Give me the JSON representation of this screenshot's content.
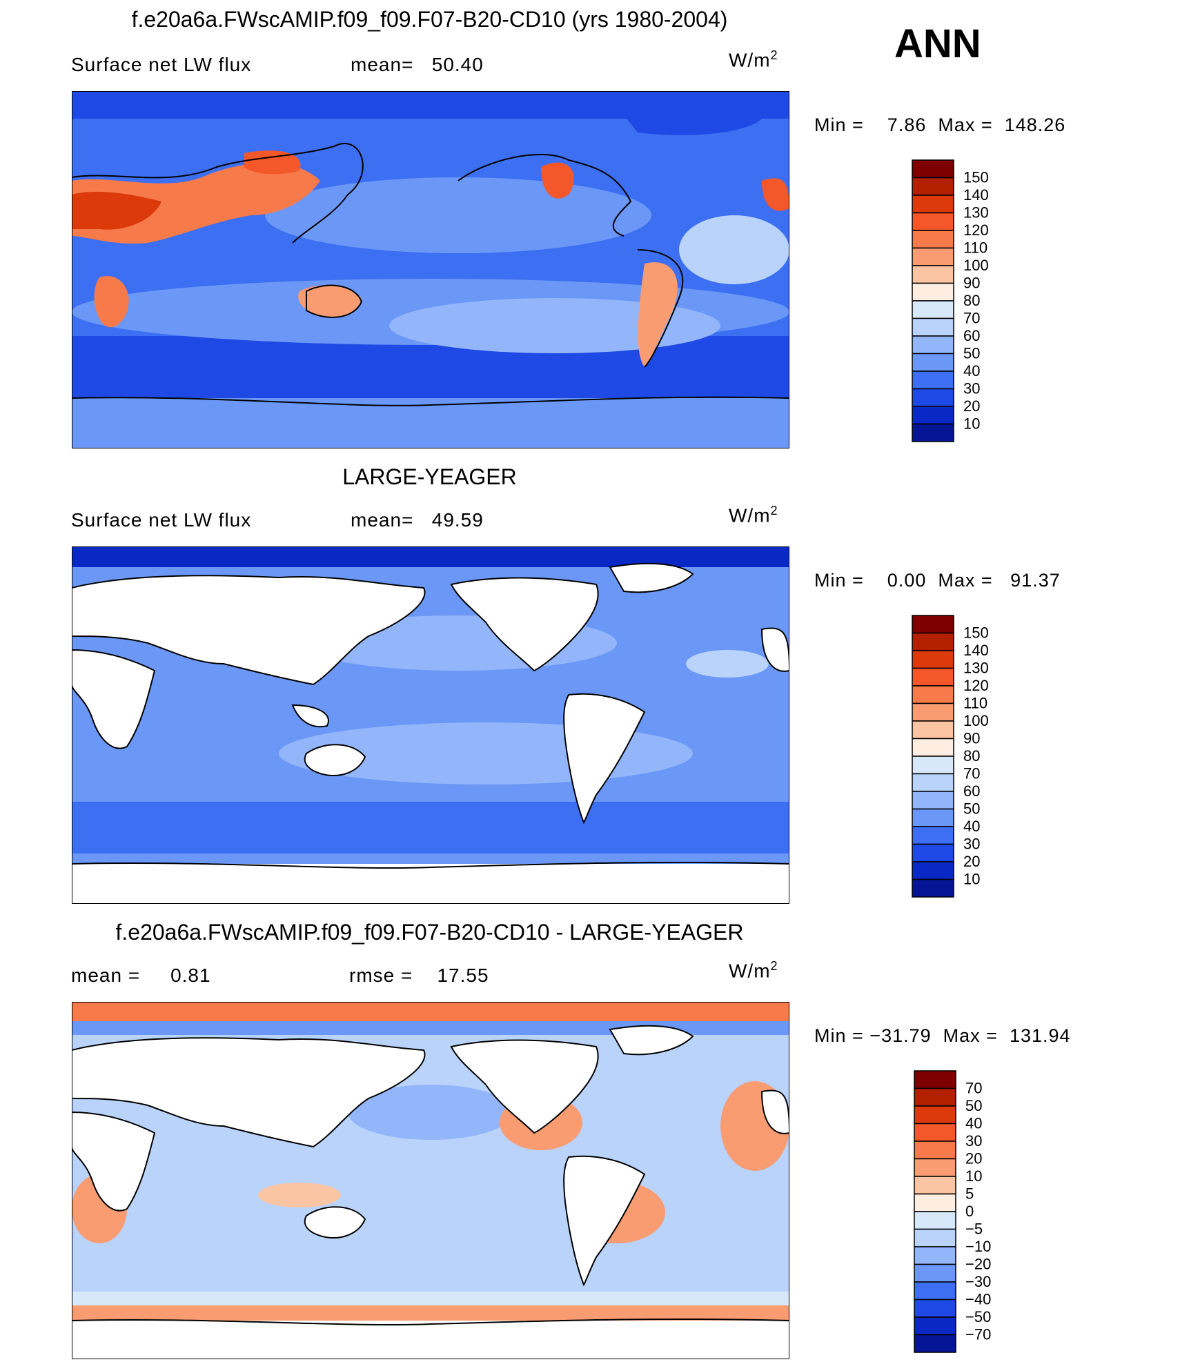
{
  "season": "ANN",
  "panels": [
    {
      "title": "f.e20a6a.FWscAMIP.f09_f09.F07-B20-CD10 (yrs 1980-2004)",
      "left_label": "Surface  net  LW  flux",
      "mid_label": "mean=",
      "mid_value": "50.40",
      "units_base": "W/m",
      "units_exp": "2",
      "min_label": "Min  =",
      "min_value": "7.86",
      "max_label": "Max  =",
      "max_value": "148.26"
    },
    {
      "title": "LARGE-YEAGER",
      "left_label": "Surface  net  LW  flux",
      "mid_label": "mean=",
      "mid_value": "49.59",
      "units_base": "W/m",
      "units_exp": "2",
      "min_label": "Min  =",
      "min_value": "0.00",
      "max_label": "Max  =",
      "max_value": "91.37"
    },
    {
      "title": "f.e20a6a.FWscAMIP.f09_f09.F07-B20-CD10 - LARGE-YEAGER",
      "left_label": "mean  =",
      "left_value": "0.81",
      "mid_label": "rmse  =",
      "mid_value": "17.55",
      "units_base": "W/m",
      "units_exp": "2",
      "min_label": "Min  =",
      "min_value": "−31.79",
      "max_label": "Max  =",
      "max_value": "131.94"
    }
  ],
  "chart_data": [
    {
      "type": "heatmap",
      "colorbar_levels": [
        "150",
        "140",
        "130",
        "120",
        "110",
        "100",
        "90",
        "80",
        "70",
        "60",
        "50",
        "40",
        "30",
        "20",
        "10"
      ],
      "colorbar_colors": [
        "#7f0000",
        "#b22000",
        "#dd3a0c",
        "#f4572a",
        "#f77a4a",
        "#f99c72",
        "#fbc4a3",
        "#feeee2",
        "#d8e8fb",
        "#b9d3fb",
        "#93b6fa",
        "#6b98f6",
        "#3d6ff2",
        "#1f49e4",
        "#0a28c4",
        "#061594"
      ]
    },
    {
      "type": "heatmap",
      "colorbar_levels": [
        "150",
        "140",
        "130",
        "120",
        "110",
        "100",
        "90",
        "80",
        "70",
        "60",
        "50",
        "40",
        "30",
        "20",
        "10"
      ],
      "colorbar_colors": [
        "#7f0000",
        "#b22000",
        "#dd3a0c",
        "#f4572a",
        "#f77a4a",
        "#f99c72",
        "#fbc4a3",
        "#feeee2",
        "#d8e8fb",
        "#b9d3fb",
        "#93b6fa",
        "#6b98f6",
        "#3d6ff2",
        "#1f49e4",
        "#0a28c4",
        "#061594"
      ]
    },
    {
      "type": "heatmap",
      "colorbar_levels": [
        "70",
        "50",
        "40",
        "30",
        "20",
        "10",
        "5",
        "0",
        "−5",
        "−10",
        "−20",
        "−30",
        "−40",
        "−50",
        "−70"
      ],
      "colorbar_colors": [
        "#7f0000",
        "#b22000",
        "#dd3a0c",
        "#f4572a",
        "#f77a4a",
        "#f99c72",
        "#fbc4a3",
        "#feeee2",
        "#d8e8fb",
        "#b9d3fb",
        "#93b6fa",
        "#6b98f6",
        "#3d6ff2",
        "#1f49e4",
        "#0a28c4",
        "#061594"
      ]
    }
  ]
}
